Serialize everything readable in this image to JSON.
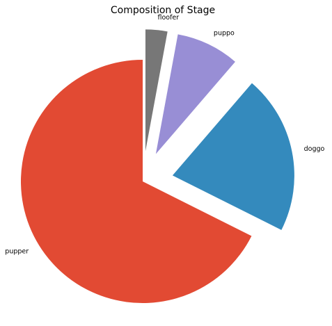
{
  "chart_data": {
    "type": "pie",
    "title": "Composition of Stage",
    "categories": [
      "pupper",
      "doggo",
      "puppo",
      "floofer"
    ],
    "values": [
      67.6,
      21.1,
      8.4,
      2.9
    ],
    "exploded": true,
    "colors": [
      "#E24A33",
      "#348ABD",
      "#988ED5",
      "#777777"
    ]
  }
}
